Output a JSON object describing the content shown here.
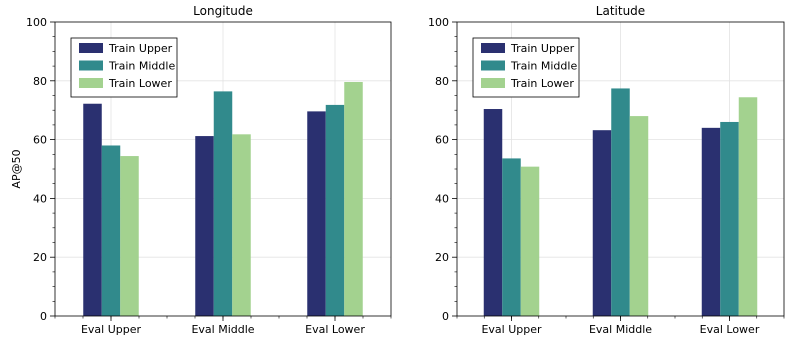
{
  "chart_data": [
    {
      "type": "bar",
      "title": "Longitude",
      "xlabel": "",
      "ylabel": "AP@50",
      "ylim": [
        0,
        100
      ],
      "yticks": [
        0,
        20,
        40,
        60,
        80,
        100
      ],
      "grid": true,
      "legend_position": "top-left",
      "categories": [
        "Eval Upper",
        "Eval Middle",
        "Eval Lower"
      ],
      "series": [
        {
          "name": "Train Upper",
          "color": "#2a3070",
          "values": [
            72.2,
            61.2,
            69.6
          ]
        },
        {
          "name": "Train Middle",
          "color": "#318a8c",
          "values": [
            58.0,
            76.4,
            71.8
          ]
        },
        {
          "name": "Train Lower",
          "color": "#a3d28f",
          "values": [
            54.4,
            61.8,
            79.6
          ]
        }
      ]
    },
    {
      "type": "bar",
      "title": "Latitude",
      "xlabel": "",
      "ylabel": "",
      "ylim": [
        0,
        100
      ],
      "yticks": [
        0,
        20,
        40,
        60,
        80,
        100
      ],
      "grid": true,
      "legend_position": "top-left",
      "categories": [
        "Eval Upper",
        "Eval Middle",
        "Eval Lower"
      ],
      "series": [
        {
          "name": "Train Upper",
          "color": "#2a3070",
          "values": [
            70.4,
            63.2,
            64.0
          ]
        },
        {
          "name": "Train Middle",
          "color": "#318a8c",
          "values": [
            53.6,
            77.4,
            66.0
          ]
        },
        {
          "name": "Train Lower",
          "color": "#a3d28f",
          "values": [
            50.8,
            68.0,
            74.4
          ]
        }
      ]
    }
  ]
}
